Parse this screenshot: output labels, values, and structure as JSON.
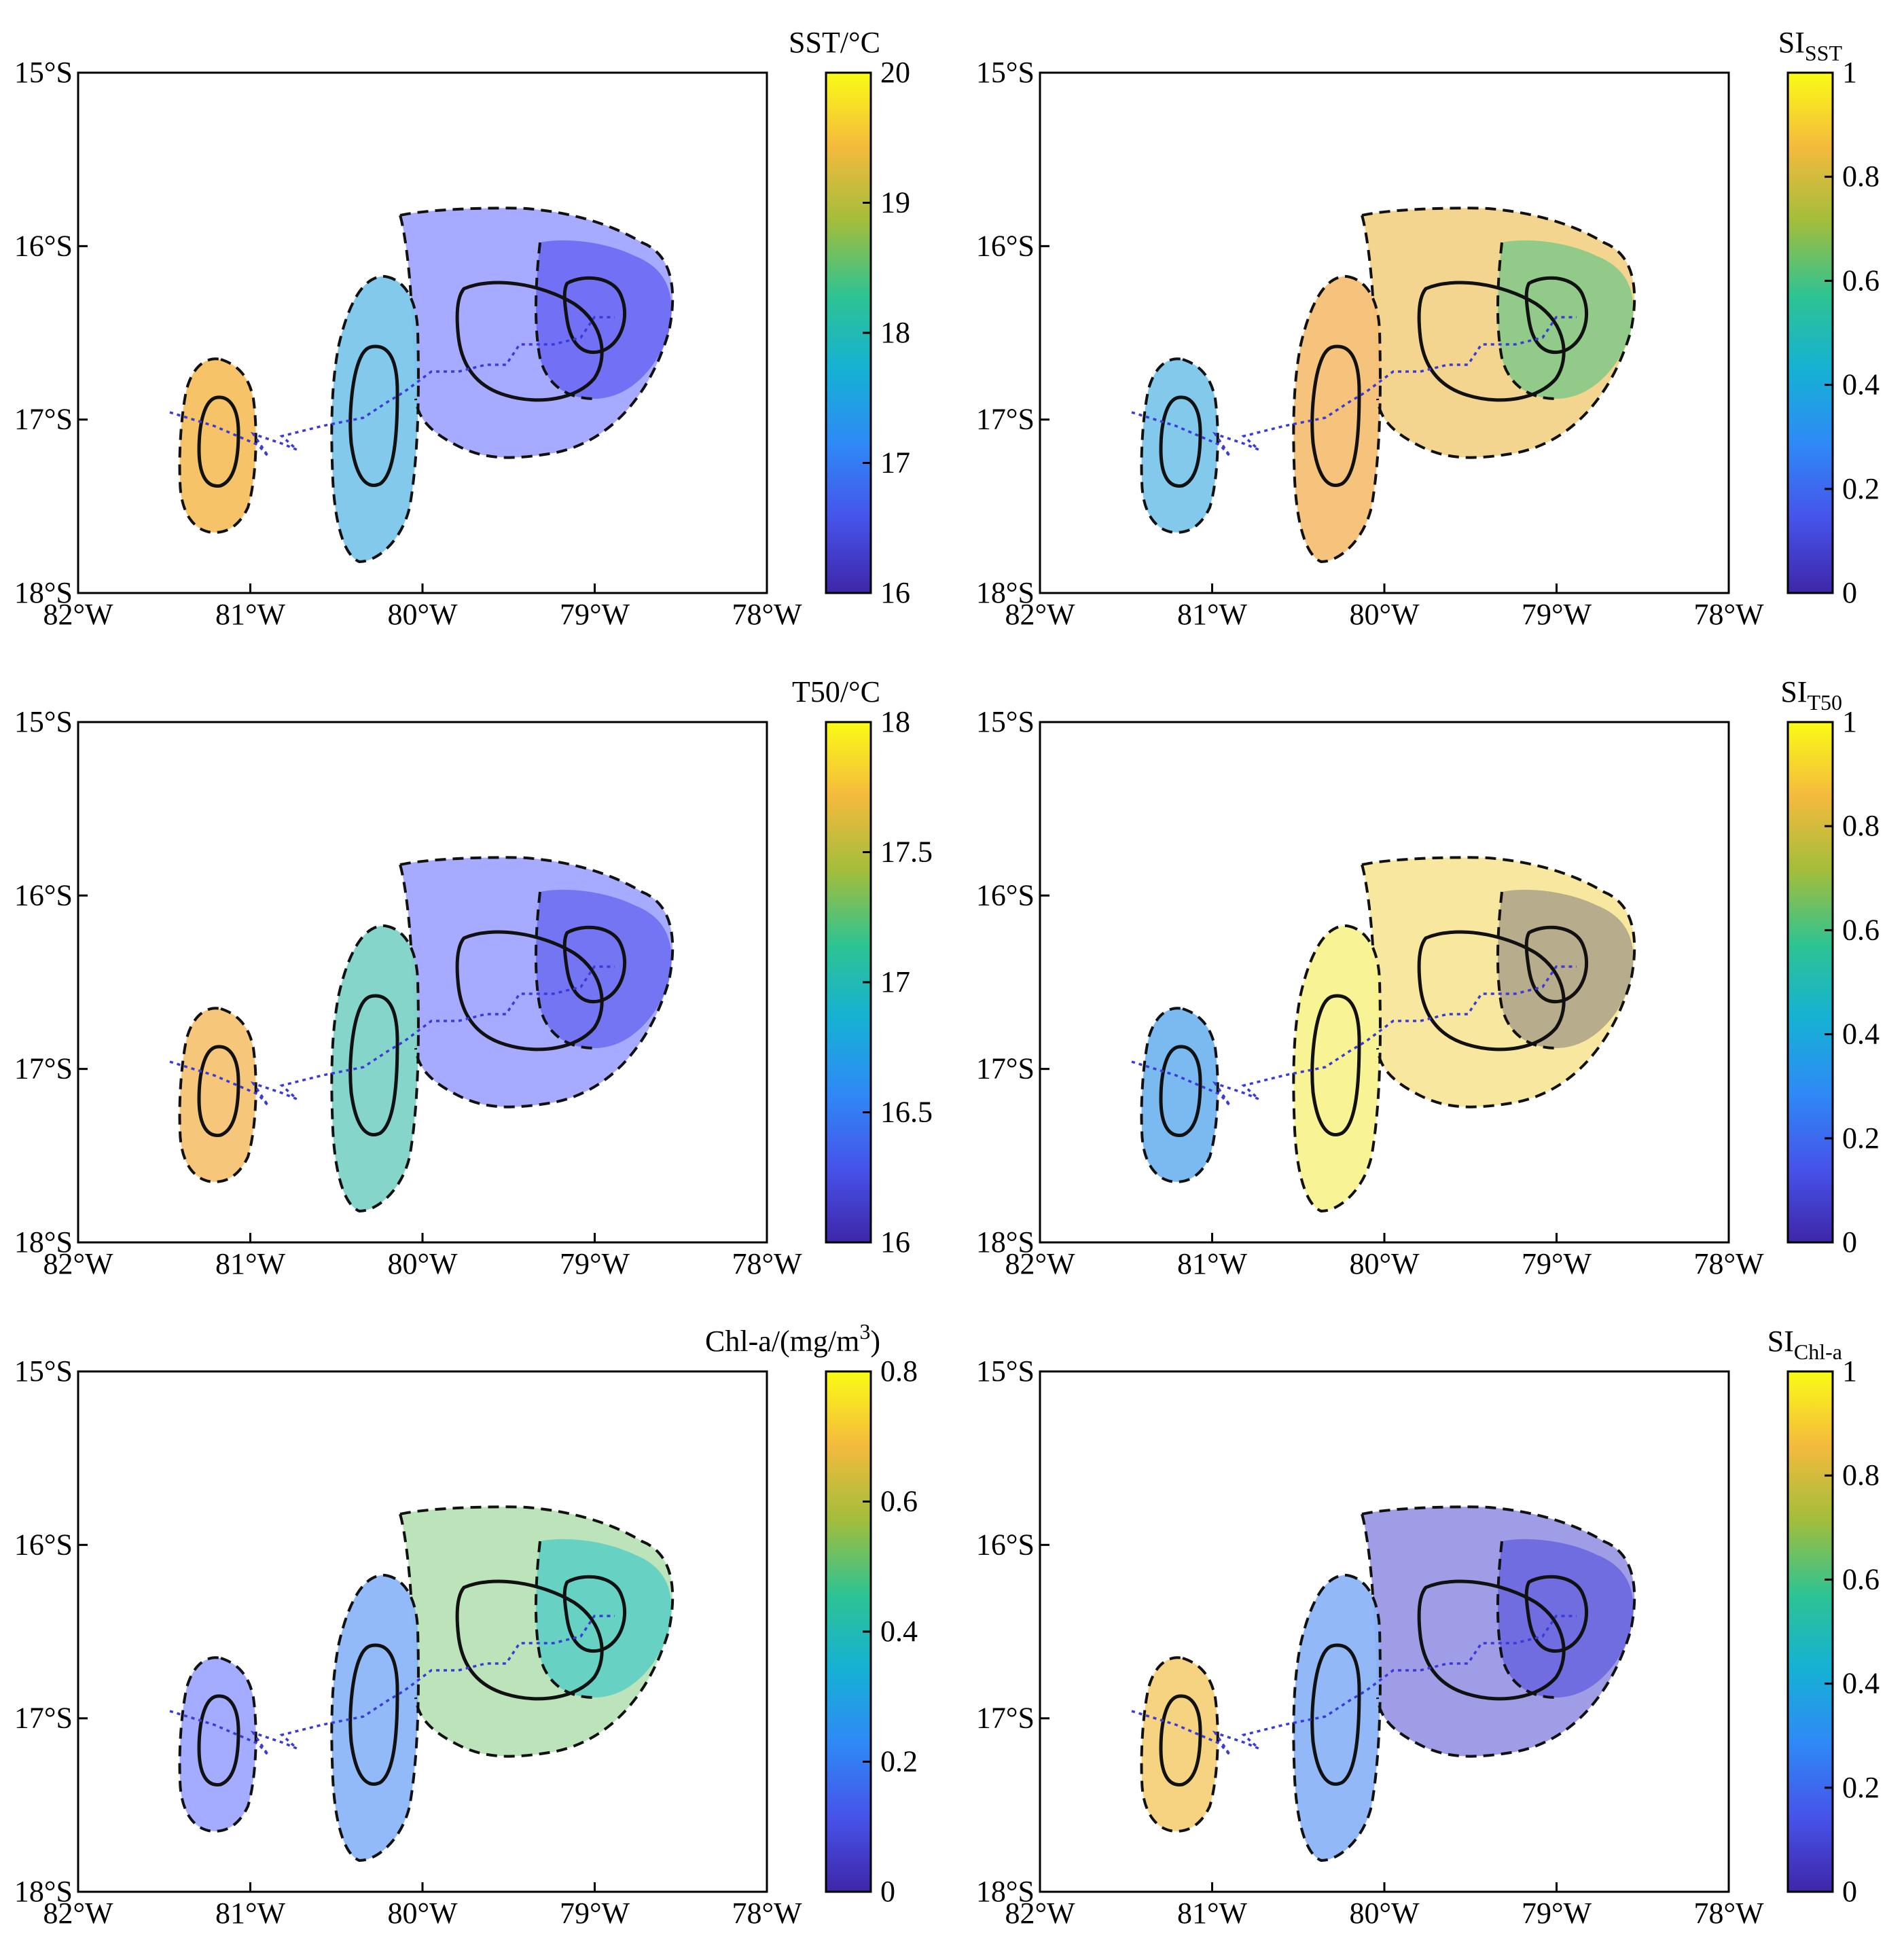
{
  "chart_data": [
    {
      "type": "map-heatmap",
      "title": "SST",
      "colorbar_label": "SST/°C",
      "colorbar_range": [
        16,
        20
      ],
      "colorbar_ticks": [
        "16",
        "17",
        "18",
        "19",
        "20"
      ],
      "x_ticks": [
        "82°W",
        "81°W",
        "80°W",
        "79°W",
        "78°W"
      ],
      "y_ticks": [
        "15°S",
        "16°S",
        "17°S",
        "18°S"
      ],
      "lon_range": [
        -82,
        -78
      ],
      "lat_range": [
        -18,
        -15
      ],
      "fill_colors": {
        "A": "#f5c061",
        "B": "#7cc6ea",
        "C": "#a2a7ff",
        "D": "#6f6ef6"
      }
    },
    {
      "type": "map-heatmap",
      "title": "SI SST",
      "colorbar_label_main": "SI",
      "colorbar_label_sub": "SST",
      "colorbar_range": [
        0,
        1
      ],
      "colorbar_ticks": [
        "0",
        "0.2",
        "0.4",
        "0.6",
        "0.8",
        "1"
      ],
      "x_ticks": [
        "82°W",
        "81°W",
        "80°W",
        "79°W",
        "78°W"
      ],
      "y_ticks": [
        "15°S",
        "16°S",
        "17°S",
        "18°S"
      ],
      "lon_range": [
        -82,
        -78
      ],
      "lat_range": [
        -18,
        -15
      ],
      "fill_colors": {
        "A": "#7cc6ea",
        "B": "#f5c076",
        "C": "#f2d38a",
        "D": "#8cc98a"
      }
    },
    {
      "type": "map-heatmap",
      "title": "T50",
      "colorbar_label": "T50/°C",
      "colorbar_range": [
        16,
        18
      ],
      "colorbar_ticks": [
        "16",
        "16.5",
        "17",
        "17.5",
        "18"
      ],
      "x_ticks": [
        "82°W",
        "81°W",
        "80°W",
        "79°W",
        "78°W"
      ],
      "y_ticks": [
        "15°S",
        "16°S",
        "17°S",
        "18°S"
      ],
      "lon_range": [
        -82,
        -78
      ],
      "lat_range": [
        -18,
        -15
      ],
      "fill_colors": {
        "A": "#f5c374",
        "B": "#7fd3c8",
        "C": "#a2a7ff",
        "D": "#7072f2"
      }
    },
    {
      "type": "map-heatmap",
      "title": "SI T50",
      "colorbar_label_main": "SI",
      "colorbar_label_sub": "T50",
      "colorbar_range": [
        0,
        1
      ],
      "colorbar_ticks": [
        "0",
        "0.2",
        "0.4",
        "0.6",
        "0.8",
        "1"
      ],
      "x_ticks": [
        "82°W",
        "81°W",
        "80°W",
        "79°W",
        "78°W"
      ],
      "y_ticks": [
        "15°S",
        "16°S",
        "17°S",
        "18°S"
      ],
      "lon_range": [
        -82,
        -78
      ],
      "lat_range": [
        -18,
        -15
      ],
      "fill_colors": {
        "A": "#74b6f0",
        "B": "#f8f28e",
        "C": "#f8e69a",
        "D": "#b3a98a"
      }
    },
    {
      "type": "map-heatmap",
      "title": "Chl-a",
      "colorbar_label": "Chl-a/(mg/m",
      "colorbar_label_sup": "3",
      "colorbar_label_end": ")",
      "colorbar_range": [
        0,
        0.8
      ],
      "colorbar_ticks": [
        "0",
        "0.2",
        "0.4",
        "0.6",
        "0.8"
      ],
      "x_ticks": [
        "82°W",
        "81°W",
        "80°W",
        "79°W",
        "78°W"
      ],
      "y_ticks": [
        "15°S",
        "16°S",
        "17°S",
        "18°S"
      ],
      "lon_range": [
        -82,
        -78
      ],
      "lat_range": [
        -18,
        -15
      ],
      "fill_colors": {
        "A": "#9fa8ff",
        "B": "#8cb6f8",
        "C": "#b9e2b6",
        "D": "#62d0c4"
      }
    },
    {
      "type": "map-heatmap",
      "title": "SI Chl-a",
      "colorbar_label_main": "SI",
      "colorbar_label_sub": "Chl-a",
      "colorbar_range": [
        0,
        1
      ],
      "colorbar_ticks": [
        "0",
        "0.2",
        "0.4",
        "0.6",
        "0.8",
        "1"
      ],
      "x_ticks": [
        "82°W",
        "81°W",
        "80°W",
        "79°W",
        "78°W"
      ],
      "y_ticks": [
        "15°S",
        "16°S",
        "17°S",
        "18°S"
      ],
      "lon_range": [
        -82,
        -78
      ],
      "lat_range": [
        -18,
        -15
      ],
      "fill_colors": {
        "A": "#f6d17a",
        "B": "#8cb4f8",
        "C": "#9b98e6",
        "D": "#6d6adf"
      }
    }
  ],
  "colormap": [
    "#3e26a8",
    "#4653ea",
    "#2f89f6",
    "#15b1d4",
    "#2ec392",
    "#a3bd3b",
    "#f4ba3d",
    "#f9fb15"
  ]
}
